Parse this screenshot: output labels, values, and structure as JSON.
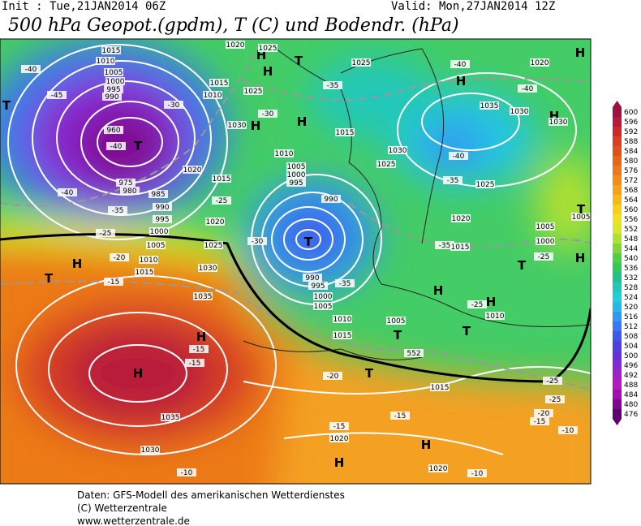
{
  "header": {
    "init": "Init : Tue,21JAN2014 06Z",
    "valid": "Valid: Mon,27JAN2014 12Z",
    "title": "500 hPa Geopot.(gpdm), T (C) und Bodendr. (hPa)"
  },
  "colorbar": {
    "levels": [
      600,
      596,
      592,
      588,
      584,
      580,
      576,
      572,
      568,
      564,
      560,
      556,
      552,
      548,
      544,
      540,
      536,
      532,
      528,
      524,
      520,
      516,
      512,
      508,
      504,
      500,
      496,
      492,
      488,
      484,
      480,
      476
    ],
    "colors": [
      "#a01040",
      "#b81a3a",
      "#cc2a2a",
      "#d84020",
      "#e05018",
      "#e86418",
      "#f07818",
      "#f48c18",
      "#f8a018",
      "#f8b818",
      "#f8d018",
      "#f0e020",
      "#d8e828",
      "#b0e030",
      "#80d838",
      "#50d040",
      "#30c860",
      "#20c090",
      "#20c8b8",
      "#20d0d8",
      "#28b8e8",
      "#3098f0",
      "#3878f0",
      "#4058e8",
      "#5040e0",
      "#6830d8",
      "#8828d0",
      "#a020c8",
      "#b818c0",
      "#a010b0",
      "#800890",
      "#600070"
    ]
  },
  "map": {
    "labels": [
      1015,
      1010,
      1005,
      1000,
      995,
      990,
      960,
      "T",
      -40,
      -45,
      -40,
      975,
      980,
      985,
      990,
      995,
      1000,
      1005,
      1010,
      1015,
      "H",
      "T",
      -20,
      -15,
      1020,
      1025,
      1030,
      1035,
      "H",
      "H",
      -15,
      -15,
      1035,
      1030,
      -10,
      "H",
      1025,
      "H",
      "H",
      "T",
      -30,
      1030,
      1010,
      1005,
      1000,
      995,
      990,
      "T",
      -35,
      990,
      995,
      1000,
      1005,
      1010,
      1015,
      "T",
      1005,
      -20,
      "T",
      1015,
      -15,
      -15,
      1020,
      "H",
      "H",
      1020,
      -10,
      "H",
      -40,
      1035,
      1030,
      "H",
      1030,
      -40,
      -35,
      1025,
      1020,
      -35,
      1015,
      "H",
      "H",
      -25,
      1010,
      "T",
      "T",
      -25,
      1005,
      1000,
      "H",
      1005,
      "T",
      -25,
      -25,
      -20,
      -15,
      -10,
      1015,
      -35,
      1025,
      1030,
      1025,
      1020,
      "H",
      -40,
      -30,
      1010,
      1015,
      1020,
      1015,
      -25,
      -30,
      "H",
      1020,
      1025,
      "T",
      -35,
      -25,
      -40,
      552
    ]
  },
  "footer": {
    "lines": [
      "Daten: GFS-Modell des amerikanischen Wetterdienstes",
      "(C) Wetterzentrale",
      "www.wetterzentrale.de"
    ]
  }
}
